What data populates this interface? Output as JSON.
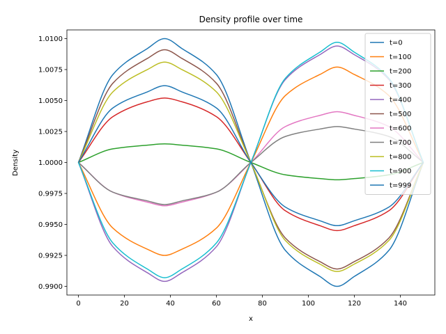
{
  "chart_data": {
    "type": "line",
    "title": "Density profile over time",
    "xlabel": "x",
    "ylabel": "Density",
    "xlim": [
      -5,
      155
    ],
    "ylim": [
      0.9893,
      1.0107
    ],
    "x_ticks": [
      0,
      20,
      40,
      60,
      80,
      100,
      120,
      140
    ],
    "y_ticks": [
      0.99,
      0.9925,
      0.995,
      0.9975,
      1.0,
      1.0025,
      1.005,
      1.0075,
      1.01
    ],
    "x_tick_labels": [
      "0",
      "20",
      "40",
      "60",
      "80",
      "100",
      "120",
      "140"
    ],
    "y_tick_labels": [
      "0.9900",
      "0.9925",
      "0.9950",
      "0.9975",
      "1.0000",
      "1.0025",
      "1.0050",
      "1.0075",
      "1.0100"
    ],
    "grid": false,
    "legend_position": "top-right",
    "x": [
      0,
      15,
      30,
      37.5,
      45,
      60,
      75,
      90,
      105,
      112.5,
      120,
      135,
      150
    ],
    "series": [
      {
        "name": "t=0",
        "color": "#1f77b4",
        "values": [
          1.0,
          1.0071,
          1.0092,
          1.01,
          1.0092,
          1.0071,
          1.0,
          0.9929,
          0.9908,
          0.99,
          0.9908,
          0.9929,
          1.0
        ]
      },
      {
        "name": "t=100",
        "color": "#ff7f0e",
        "values": [
          1.0,
          0.9947,
          0.993,
          0.9925,
          0.993,
          0.9947,
          1.0,
          1.0054,
          1.0071,
          1.0077,
          1.0071,
          1.0054,
          1.0
        ]
      },
      {
        "name": "t=200",
        "color": "#2ca02c",
        "values": [
          1.0,
          1.0011,
          1.0014,
          1.0015,
          1.0014,
          1.0011,
          1.0,
          0.999,
          0.9987,
          0.9986,
          0.9987,
          0.999,
          1.0
        ]
      },
      {
        "name": "t=300",
        "color": "#d62728",
        "values": [
          1.0,
          1.0037,
          1.0049,
          1.0052,
          1.0049,
          1.0037,
          1.0,
          0.9961,
          0.9949,
          0.9945,
          0.9949,
          0.9961,
          1.0
        ]
      },
      {
        "name": "t=400",
        "color": "#9467bd",
        "values": [
          1.0,
          0.9932,
          0.9911,
          0.9904,
          0.9911,
          0.9932,
          1.0,
          1.0067,
          1.0087,
          1.0094,
          1.0087,
          1.0067,
          1.0
        ]
      },
      {
        "name": "t=500",
        "color": "#8c564b",
        "values": [
          1.0,
          1.0064,
          1.0084,
          1.0091,
          1.0084,
          1.0064,
          1.0,
          0.9939,
          0.992,
          0.9914,
          0.992,
          0.9939,
          1.0
        ]
      },
      {
        "name": "t=600",
        "color": "#e377c2",
        "values": [
          1.0,
          0.9976,
          0.9968,
          0.9965,
          0.9968,
          0.9976,
          1.0,
          1.0029,
          1.0038,
          1.0041,
          1.0038,
          1.0029,
          1.0
        ]
      },
      {
        "name": "t=700",
        "color": "#7f7f7f",
        "values": [
          1.0,
          0.9976,
          0.9969,
          0.9966,
          0.9969,
          0.9976,
          1.0,
          1.0021,
          1.0027,
          1.0029,
          1.0027,
          1.0021,
          1.0
        ]
      },
      {
        "name": "t=800",
        "color": "#bcbd22",
        "values": [
          1.0,
          1.0057,
          1.0075,
          1.0081,
          1.0075,
          1.0057,
          1.0,
          0.9937,
          0.9918,
          0.9912,
          0.9918,
          0.9937,
          1.0
        ]
      },
      {
        "name": "t=900",
        "color": "#17becf",
        "values": [
          1.0,
          0.9935,
          0.9914,
          0.9907,
          0.9914,
          0.9935,
          1.0,
          1.0068,
          1.0089,
          1.0097,
          1.0089,
          1.0068,
          1.0
        ]
      },
      {
        "name": "t=999",
        "color": "#1f77b4",
        "values": [
          1.0,
          1.0044,
          1.0057,
          1.0062,
          1.0057,
          1.0044,
          1.0,
          0.9964,
          0.9953,
          0.9949,
          0.9953,
          0.9964,
          1.0
        ]
      }
    ]
  }
}
